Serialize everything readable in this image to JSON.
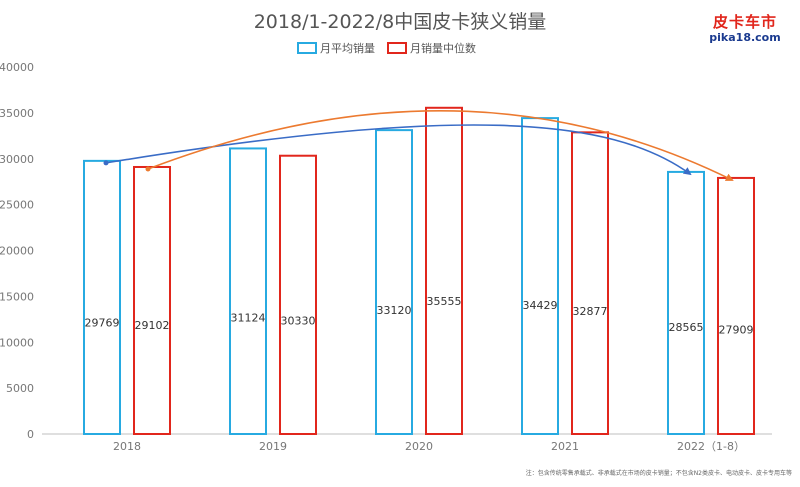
{
  "logo": {
    "line1": "皮卡车市",
    "line2": "pika18.com"
  },
  "note": "注：包含传统零售承载式、非承载式在市场的皮卡销量；不包含N2类皮卡、电动皮卡、皮卡专用车等",
  "colors": {
    "series1": "#27aae1",
    "series2": "#e1261c",
    "trend1": "#3a6cc6",
    "trend2": "#ec7a30",
    "axis": "#bfbfbf",
    "tick": "#777777"
  },
  "chart_data": {
    "type": "bar",
    "title": "2018/1-2022/8中国皮卡狭义销量",
    "categories": [
      "2018",
      "2019",
      "2020",
      "2021",
      "2022（1-8）"
    ],
    "series": [
      {
        "name": "月平均销量",
        "values": [
          29769,
          31124,
          33120,
          34429,
          28565
        ]
      },
      {
        "name": "月销量中位数",
        "values": [
          29102,
          30330,
          35555,
          32877,
          27909
        ]
      }
    ],
    "ylim": [
      0,
      40000
    ],
    "yticks": [
      0,
      5000,
      10000,
      15000,
      20000,
      25000,
      30000,
      35000,
      40000
    ],
    "grid": false,
    "legend": "top-center",
    "bar_style": "outline",
    "trend_lines": [
      {
        "series": "月平均销量",
        "style": "curve-arrow"
      },
      {
        "series": "月销量中位数",
        "style": "curve-arrow"
      }
    ]
  }
}
